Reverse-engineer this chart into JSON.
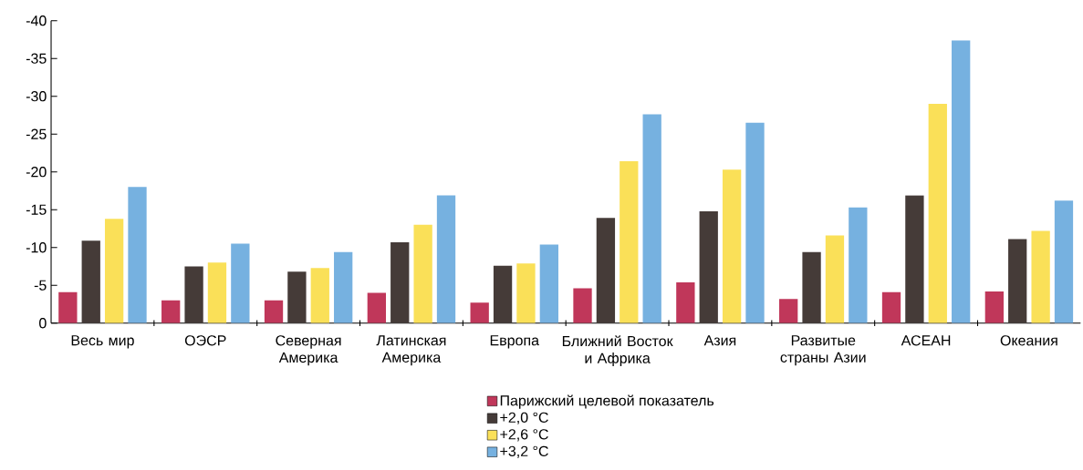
{
  "chart_data": {
    "type": "bar",
    "categories": [
      "Весь мир",
      "ОЭСР",
      "Северная Америка",
      "Латинская Америка",
      "Европа",
      "Ближний Восток и Африка",
      "Азия",
      "Развитые страны Азии",
      "АСЕАН",
      "Океания"
    ],
    "series": [
      {
        "name": "Парижский целевой показатель",
        "color": "#c0375a",
        "values": [
          -4.1,
          -3.0,
          -3.0,
          -4.0,
          -2.7,
          -4.6,
          -5.4,
          -3.2,
          -4.1,
          -4.2
        ]
      },
      {
        "name": "+2,0 °C",
        "color": "#453b38",
        "values": [
          -10.9,
          -7.5,
          -6.8,
          -10.7,
          -7.6,
          -13.9,
          -14.8,
          -9.4,
          -16.9,
          -11.1
        ]
      },
      {
        "name": "+2,6 °C",
        "color": "#fae058",
        "values": [
          -13.8,
          -8.0,
          -7.3,
          -13.0,
          -7.9,
          -21.4,
          -20.3,
          -11.6,
          -29.0,
          -12.2
        ]
      },
      {
        "name": "+3,2 °C",
        "color": "#76b1e0",
        "values": [
          -18.0,
          -10.5,
          -9.4,
          -16.9,
          -10.4,
          -27.6,
          -26.5,
          -15.3,
          -37.4,
          -16.2
        ]
      }
    ],
    "ylim": [
      0,
      -40
    ],
    "yticks": [
      -40,
      -35,
      -30,
      -25,
      -20,
      -15,
      -10,
      -5,
      0
    ],
    "grid": false,
    "legend": "bottom"
  }
}
